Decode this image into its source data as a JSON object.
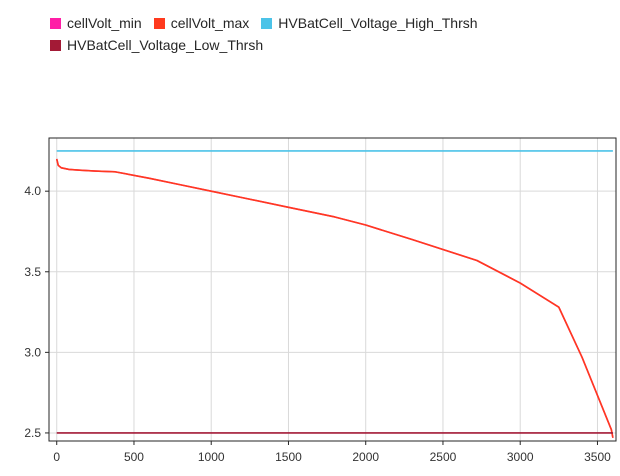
{
  "chart_data": {
    "type": "line",
    "title": "",
    "xlabel": "",
    "ylabel": "",
    "xlim": [
      -50,
      3620
    ],
    "ylim": [
      2.45,
      4.33
    ],
    "x_ticks": [
      0,
      500,
      1000,
      1500,
      2000,
      2500,
      3000,
      3500
    ],
    "x_tick_labels": [
      "0",
      "500",
      "1000",
      "1500",
      "2000",
      "2500",
      "3000",
      "3500"
    ],
    "y_ticks": [
      2.5,
      3.0,
      3.5,
      4.0
    ],
    "y_tick_labels": [
      "2.5",
      "3.0",
      "3.5",
      "4.0"
    ],
    "grid": true,
    "legend_position": "top-left, above plot",
    "series": [
      {
        "name": "cellVolt_min",
        "color": "#ff1ea6",
        "x": [
          0,
          10,
          30,
          80,
          150,
          250,
          380,
          600,
          800,
          1000,
          1200,
          1500,
          1800,
          2000,
          2300,
          2720,
          3000,
          3250,
          3400,
          3590,
          3600
        ],
        "y": [
          4.2,
          4.16,
          4.145,
          4.135,
          4.13,
          4.125,
          4.12,
          4.08,
          4.04,
          4.0,
          3.96,
          3.9,
          3.84,
          3.79,
          3.7,
          3.57,
          3.43,
          3.28,
          2.97,
          2.52,
          2.47
        ]
      },
      {
        "name": "cellVolt_max",
        "color": "#ff3a1e",
        "x": [
          0,
          10,
          30,
          80,
          150,
          250,
          380,
          600,
          800,
          1000,
          1200,
          1500,
          1800,
          2000,
          2300,
          2720,
          3000,
          3250,
          3400,
          3590,
          3600
        ],
        "y": [
          4.2,
          4.16,
          4.145,
          4.135,
          4.13,
          4.125,
          4.12,
          4.08,
          4.04,
          4.0,
          3.96,
          3.9,
          3.84,
          3.79,
          3.7,
          3.57,
          3.43,
          3.28,
          2.97,
          2.52,
          2.47
        ]
      },
      {
        "name": "HVBatCell_Voltage_High_Thrsh",
        "color": "#4cc3e8",
        "x": [
          0,
          3600
        ],
        "y": [
          4.25,
          4.25
        ]
      },
      {
        "name": "HVBatCell_Voltage_Low_Thrsh",
        "color": "#a31a36",
        "x": [
          0,
          3600
        ],
        "y": [
          2.5,
          2.5
        ]
      }
    ]
  }
}
